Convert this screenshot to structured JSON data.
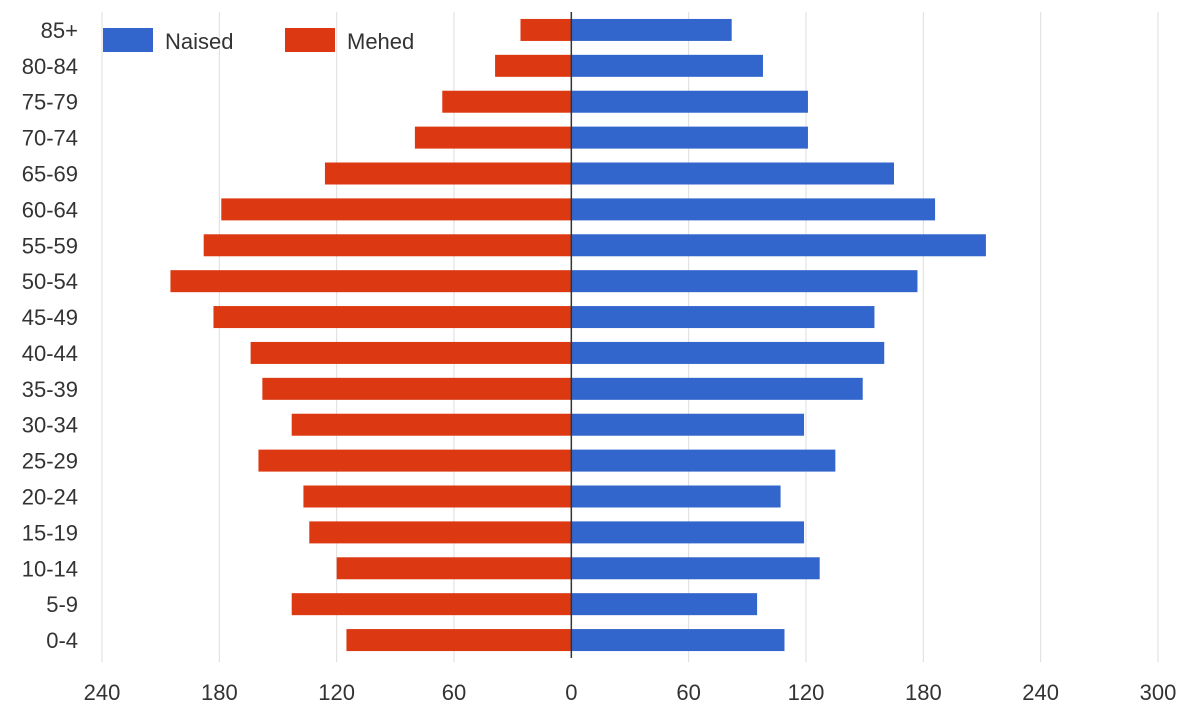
{
  "chart_data": {
    "type": "bar",
    "orientation": "horizontal-diverging",
    "categories": [
      "85+",
      "80-84",
      "75-79",
      "70-74",
      "65-69",
      "60-64",
      "55-59",
      "50-54",
      "45-49",
      "40-44",
      "35-39",
      "30-34",
      "25-29",
      "20-24",
      "15-19",
      "10-14",
      "5-9",
      "0-4"
    ],
    "series": [
      {
        "name": "Naised",
        "color": "#3366cc",
        "side": "right",
        "values": [
          82,
          98,
          121,
          121,
          165,
          186,
          212,
          177,
          155,
          160,
          149,
          119,
          135,
          107,
          119,
          127,
          95,
          109
        ]
      },
      {
        "name": "Mehed",
        "color": "#dc3912",
        "side": "left",
        "values": [
          26,
          39,
          66,
          80,
          126,
          179,
          188,
          205,
          183,
          164,
          158,
          143,
          160,
          137,
          134,
          120,
          143,
          115
        ]
      }
    ],
    "xlim": [
      -240,
      300
    ],
    "xticks": [
      -240,
      -180,
      -120,
      -60,
      0,
      60,
      120,
      180,
      240,
      300
    ],
    "xtick_labels": [
      "240",
      "180",
      "120",
      "60",
      "0",
      "60",
      "120",
      "180",
      "240",
      "300"
    ],
    "grid": true,
    "legend": {
      "position": "top-left",
      "entries": [
        "Naised",
        "Mehed"
      ]
    },
    "title": "",
    "xlabel": "",
    "ylabel": ""
  }
}
